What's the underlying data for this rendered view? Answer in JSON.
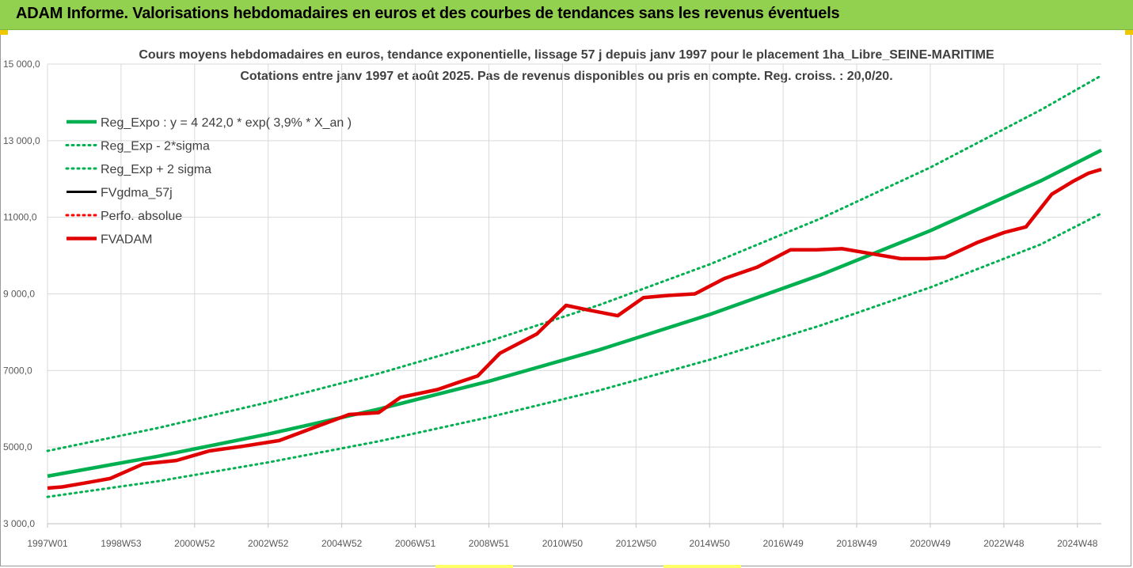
{
  "banner": {
    "title": "ADAM Informe. Valorisations hebdomadaires en euros et des courbes de tendances sans les revenus éventuels"
  },
  "colors": {
    "banner_bg": "#92d050",
    "trend": "#00b050",
    "fvadam": "#e00000",
    "fvgdma": "#000000",
    "perfo": "#ff0000",
    "grid": "#d9d9d9"
  },
  "chart_data": {
    "type": "line",
    "title": "Cours moyens hebdomadaires en euros, tendance exponentielle, lissage 57 j depuis janv 1997  pour le placement 1ha_Libre_SEINE-MARITIME",
    "subtitle": "Cotations entre janv 1997 et août 2025. Pas de revenus disponibles ou pris en compte. Reg. croiss. : 20,0/20.",
    "xlabel": "",
    "ylabel": "",
    "ylim": [
      3000,
      15000
    ],
    "xlim": [
      1997.0,
      2025.65
    ],
    "grid": true,
    "legend_position": "top-left",
    "y_ticks": [
      {
        "value": 3000,
        "label": "3 000,0"
      },
      {
        "value": 5000,
        "label": "5000,0"
      },
      {
        "value": 7000,
        "label": "7000,0"
      },
      {
        "value": 9000,
        "label": "9 000,0"
      },
      {
        "value": 11000,
        "label": "11000,0"
      },
      {
        "value": 13000,
        "label": "13 000,0"
      },
      {
        "value": 15000,
        "label": "15 000,0"
      }
    ],
    "x_ticks": [
      {
        "value": 1997.0,
        "label": "1997W01"
      },
      {
        "value": 1999.0,
        "label": "1998W53"
      },
      {
        "value": 2001.0,
        "label": "2000W52"
      },
      {
        "value": 2003.0,
        "label": "2002W52"
      },
      {
        "value": 2005.0,
        "label": "2004W52"
      },
      {
        "value": 2007.0,
        "label": "2006W51"
      },
      {
        "value": 2009.0,
        "label": "2008W51"
      },
      {
        "value": 2011.0,
        "label": "2010W50"
      },
      {
        "value": 2013.0,
        "label": "2012W50"
      },
      {
        "value": 2015.0,
        "label": "2014W50"
      },
      {
        "value": 2017.0,
        "label": "2016W49"
      },
      {
        "value": 2019.0,
        "label": "2018W49"
      },
      {
        "value": 2021.0,
        "label": "2020W49"
      },
      {
        "value": 2023.0,
        "label": "2022W48"
      },
      {
        "value": 2025.0,
        "label": "2024W48"
      }
    ],
    "series": [
      {
        "name": "Reg_Expo : y = 4 242,0 * exp( 3,9% *  X_an )",
        "style": "solid-thick",
        "color": "#00b050",
        "x": [
          1997.0,
          2000.0,
          2003.0,
          2006.0,
          2009.0,
          2012.0,
          2015.0,
          2018.0,
          2021.0,
          2024.0,
          2025.65
        ],
        "y": [
          4242,
          4760,
          5340,
          5990,
          6720,
          7540,
          8460,
          9490,
          10650,
          11950,
          12750
        ]
      },
      {
        "name": "Reg_Exp - 2*sigma",
        "style": "dotted",
        "color": "#00b050",
        "x": [
          1997.0,
          2000.0,
          2003.0,
          2006.0,
          2009.0,
          2012.0,
          2015.0,
          2018.0,
          2021.0,
          2024.0,
          2025.65
        ],
        "y": [
          3700,
          4110,
          4600,
          5150,
          5780,
          6480,
          7280,
          8170,
          9170,
          10290,
          11100
        ]
      },
      {
        "name": "Reg_Exp + 2 sigma",
        "style": "dotted",
        "color": "#00b050",
        "x": [
          1997.0,
          2000.0,
          2003.0,
          2006.0,
          2009.0,
          2012.0,
          2015.0,
          2018.0,
          2021.0,
          2024.0,
          2025.65
        ],
        "y": [
          4900,
          5500,
          6170,
          6920,
          7760,
          8710,
          9770,
          10960,
          12300,
          13800,
          14700
        ]
      },
      {
        "name": "FVgdma_57j",
        "style": "solid",
        "color": "#000000",
        "x": [
          1997.0,
          1997.4,
          1998.0,
          1998.7,
          1999.6,
          2000.5,
          2001.4,
          2002.3,
          2003.3,
          2004.3,
          2005.2,
          2006.0,
          2006.6,
          2007.6,
          2008.2,
          2008.7,
          2009.3,
          2010.3,
          2011.1,
          2011.6,
          2012.5,
          2013.2,
          2013.9,
          2014.6,
          2015.4,
          2016.3,
          2017.2,
          2017.9,
          2018.6,
          2019.4,
          2020.2,
          2020.9,
          2021.4,
          2022.3,
          2023.0,
          2023.6,
          2024.3,
          2024.9,
          2025.3,
          2025.65
        ],
        "y": [
          3930,
          3960,
          4060,
          4180,
          4560,
          4650,
          4900,
          5020,
          5170,
          5530,
          5850,
          5900,
          6300,
          6500,
          6700,
          6860,
          7450,
          7950,
          8700,
          8600,
          8430,
          8900,
          8960,
          9000,
          9400,
          9700,
          10150,
          10150,
          10180,
          10050,
          9920,
          9920,
          9950,
          10350,
          10600,
          10750,
          11600,
          11950,
          12150,
          12250
        ]
      },
      {
        "name": "Perfo. absolue",
        "style": "dotted",
        "color": "#ff0000",
        "x": [],
        "y": []
      },
      {
        "name": "FVADAM",
        "style": "solid-thick",
        "color": "#e00000",
        "x": [
          1997.0,
          1997.4,
          1998.0,
          1998.7,
          1999.6,
          2000.5,
          2001.4,
          2002.3,
          2003.3,
          2004.3,
          2005.2,
          2006.0,
          2006.6,
          2007.6,
          2008.2,
          2008.7,
          2009.3,
          2010.3,
          2011.1,
          2011.6,
          2012.5,
          2013.2,
          2013.9,
          2014.6,
          2015.4,
          2016.3,
          2017.2,
          2017.9,
          2018.6,
          2019.4,
          2020.2,
          2020.9,
          2021.4,
          2022.3,
          2023.0,
          2023.6,
          2024.3,
          2024.9,
          2025.3,
          2025.65
        ],
        "y": [
          3930,
          3960,
          4060,
          4180,
          4560,
          4650,
          4900,
          5020,
          5170,
          5530,
          5850,
          5900,
          6300,
          6500,
          6700,
          6860,
          7450,
          7950,
          8700,
          8600,
          8430,
          8900,
          8960,
          9000,
          9400,
          9700,
          10150,
          10150,
          10180,
          10050,
          9920,
          9920,
          9950,
          10350,
          10600,
          10750,
          11600,
          11950,
          12150,
          12250
        ]
      }
    ]
  }
}
